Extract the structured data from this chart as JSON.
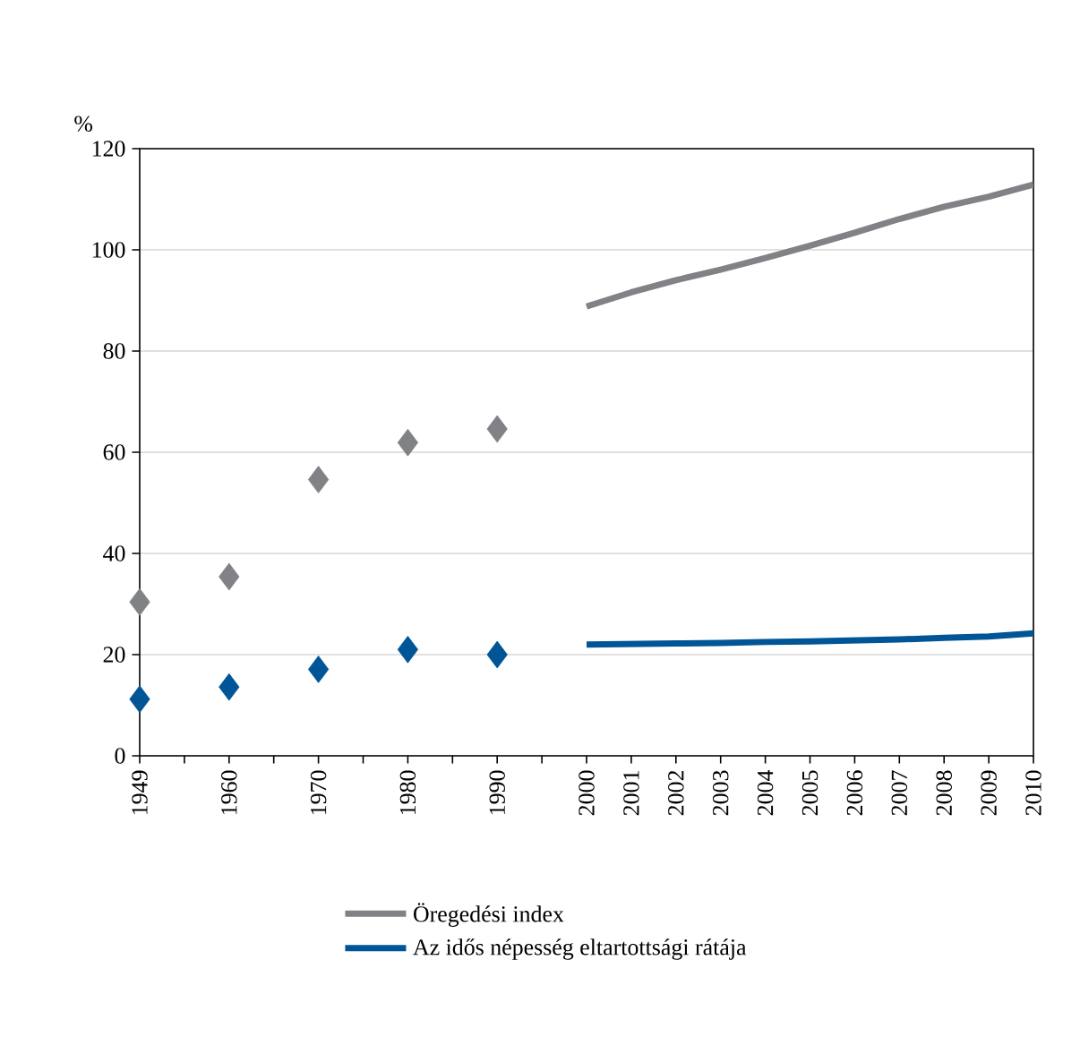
{
  "chart_data": {
    "type": "line",
    "ylabel": "%",
    "categories": [
      "1949",
      null,
      "1960",
      null,
      "1970",
      null,
      "1980",
      null,
      "1990",
      null,
      "2000",
      "2001",
      "2002",
      "2003",
      "2004",
      "2005",
      "2006",
      "2007",
      "2008",
      "2009",
      "2010"
    ],
    "ylim": [
      0,
      120
    ],
    "yticks": [
      0,
      20,
      40,
      60,
      80,
      100,
      120
    ],
    "grid": "y",
    "legend": "bottom",
    "series": [
      {
        "type": "scatter",
        "marker": "diamond",
        "color": "#808285",
        "values": [
          30.4,
          null,
          35.4,
          null,
          54.6,
          null,
          61.9,
          null,
          64.6,
          null,
          null,
          null,
          null,
          null,
          null,
          null,
          null,
          null,
          null,
          null,
          null
        ]
      },
      {
        "type": "scatter",
        "marker": "diamond",
        "color": "#005596",
        "values": [
          11.2,
          null,
          13.6,
          null,
          17.1,
          null,
          21.0,
          null,
          20.0,
          null,
          null,
          null,
          null,
          null,
          null,
          null,
          null,
          null,
          null,
          null,
          null
        ]
      },
      {
        "name": "Öregedési index",
        "color": "#808285",
        "values": [
          null,
          null,
          null,
          null,
          null,
          null,
          null,
          null,
          null,
          null,
          88.8,
          91.6,
          94.0,
          96.1,
          98.4,
          100.8,
          103.4,
          106.1,
          108.5,
          110.5,
          112.9
        ]
      },
      {
        "name": "Az idős népesség eltartottsági rátája",
        "color": "#005596",
        "values": [
          null,
          null,
          null,
          null,
          null,
          null,
          null,
          null,
          null,
          null,
          22.0,
          22.1,
          22.2,
          22.3,
          22.5,
          22.6,
          22.8,
          23.0,
          23.3,
          23.6,
          24.2
        ]
      }
    ]
  }
}
